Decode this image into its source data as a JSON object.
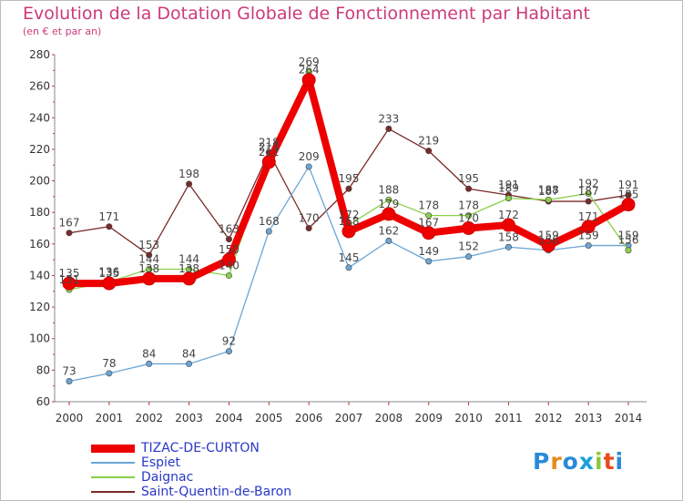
{
  "chart_data": {
    "type": "line",
    "title": "Evolution de la Dotation Globale de Fonctionnement par Habitant",
    "subtitle": "(en € et par an)",
    "x": [
      "2000",
      "2001",
      "2002",
      "2003",
      "2004",
      "2005",
      "2006",
      "2007",
      "2008",
      "2009",
      "2010",
      "2011",
      "2012",
      "2013",
      "2014"
    ],
    "ylim": [
      60,
      280
    ],
    "yticks": [
      "60",
      "80",
      "100",
      "120",
      "140",
      "160",
      "180",
      "200",
      "220",
      "240",
      "260",
      "280"
    ],
    "grid": false,
    "legend_position": "bottom-left",
    "series": [
      {
        "name": "TIZAC-DE-CURTON",
        "color": "#ee0000",
        "values": [
          135,
          135,
          138,
          138,
          150,
          212,
          264,
          168,
          179,
          167,
          170,
          172,
          159,
          171,
          185
        ]
      },
      {
        "name": "Espiet",
        "color": "#6aa5d6",
        "values": [
          73,
          78,
          84,
          84,
          92,
          168,
          209,
          145,
          162,
          149,
          152,
          158,
          156,
          159,
          159
        ]
      },
      {
        "name": "Daignac",
        "color": "#8ad04a",
        "values": [
          131,
          136,
          144,
          144,
          140,
          215,
          269,
          172,
          188,
          178,
          178,
          189,
          188,
          192,
          156
        ]
      },
      {
        "name": "Saint-Quentin-de-Baron",
        "color": "#7a2a2a",
        "values": [
          167,
          171,
          153,
          198,
          163,
          218,
          170,
          195,
          233,
          219,
          195,
          191,
          187,
          187,
          191
        ]
      }
    ]
  },
  "brand": {
    "text": "Proxiti"
  }
}
